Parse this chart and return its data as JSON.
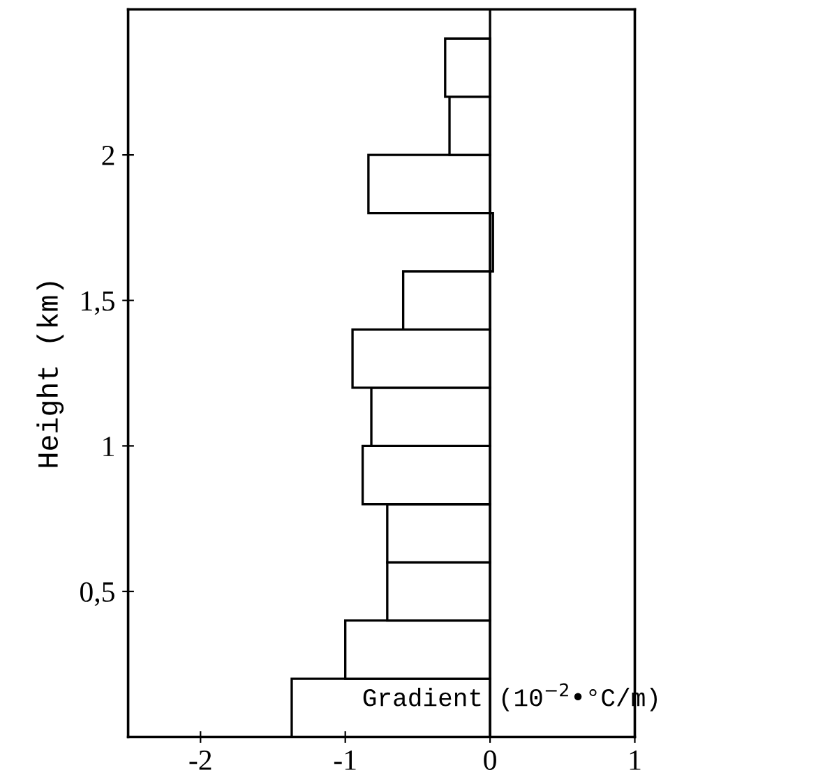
{
  "chart_data": {
    "type": "histogram",
    "orientation": "horizontal",
    "xlabel": "Gradient (10$^{−2}$•°C/m)",
    "ylabel": "Height (km)",
    "bins": [
      0,
      0.2,
      0.4,
      0.6,
      0.8,
      1.0,
      1.2,
      1.4,
      1.6,
      1.8,
      2.0,
      2.2,
      2.4
    ],
    "values": [
      -1.37,
      -1.0,
      -0.71,
      -0.71,
      -0.88,
      -0.82,
      -0.95,
      -0.6,
      0.02,
      -0.84,
      -0.28,
      -0.31
    ],
    "color": "#ffffff",
    "xlim": [
      -2.5,
      1
    ],
    "xticks": [
      -2,
      -1,
      0,
      1
    ],
    "ylim": [
      0,
      2.5
    ],
    "yticks": [
      {
        "value": 0.5,
        "label": "0,5"
      },
      {
        "value": 1,
        "label": "1"
      },
      {
        "value": 1.5,
        "label": "1,5"
      },
      {
        "value": 2,
        "label": "2"
      }
    ],
    "ref_lines": [
      {
        "axis": "x",
        "value": 0,
        "color": "#000000"
      }
    ],
    "grid": false,
    "legend": false
  }
}
